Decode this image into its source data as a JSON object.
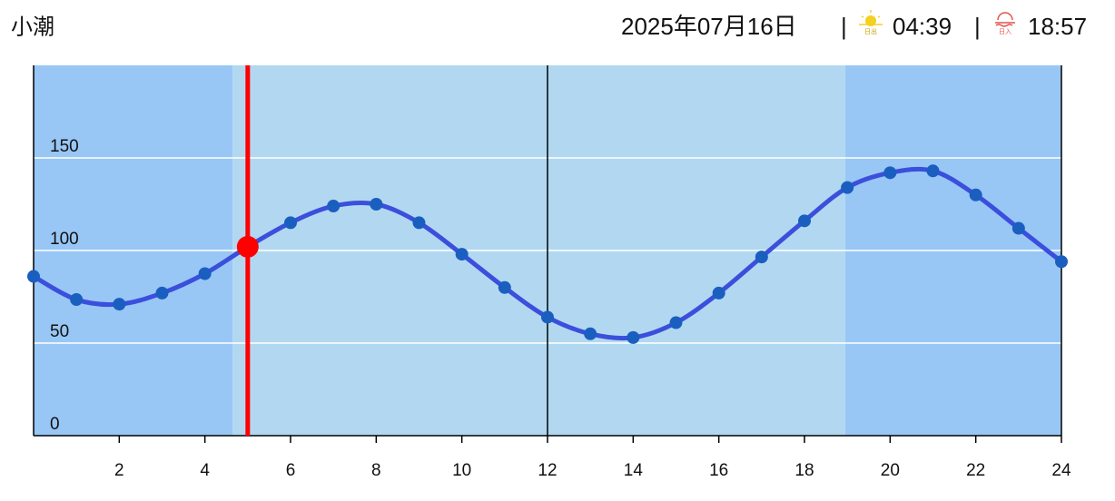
{
  "chart_data": {
    "type": "line",
    "title": "小潮",
    "date": "2025年07月16日",
    "separator": "|",
    "sunrise": "04:39",
    "sunset": "18:57",
    "sunrise_icon_label": "日出",
    "sunset_icon_label": "日入",
    "x": [
      0,
      1,
      2,
      3,
      4,
      5,
      6,
      7,
      8,
      9,
      10,
      11,
      12,
      13,
      14,
      15,
      16,
      17,
      18,
      19,
      20,
      21,
      22,
      23,
      24
    ],
    "series": [
      {
        "color": "#3b4fdc",
        "marker_color": "#1a5fbf",
        "values": [
          86,
          73.5,
          71,
          77,
          87.5,
          102,
          115,
          124,
          125,
          115,
          98,
          80,
          64,
          55,
          53,
          61,
          77,
          96.5,
          116,
          134,
          142,
          143,
          130,
          112,
          94
        ]
      }
    ],
    "current": {
      "x": 5,
      "value": 102,
      "color": "#ff0000"
    },
    "noon": 12,
    "xlim": [
      0,
      24
    ],
    "xticks": [
      2,
      4,
      6,
      8,
      10,
      12,
      14,
      16,
      18,
      20,
      22,
      24
    ],
    "ylim": [
      0,
      200
    ],
    "yticks": [
      0,
      50,
      100,
      150
    ],
    "grid": true,
    "night_color": "#98c7f6",
    "day_color": "#b2d8f1"
  }
}
